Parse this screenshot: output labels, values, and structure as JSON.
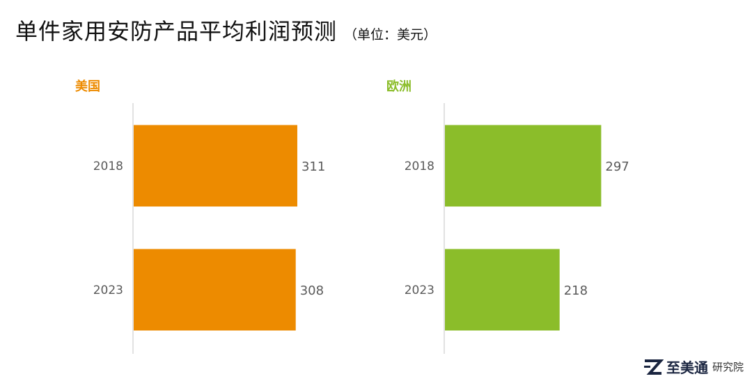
{
  "title": "单件家用安防产品平均利润预测",
  "unit": "（单位：美元）",
  "chart_data": [
    {
      "type": "bar",
      "orientation": "horizontal",
      "title": "美国",
      "color": "#ED8B00",
      "categories": [
        "2018",
        "2023"
      ],
      "values": [
        311,
        308
      ],
      "xlim": [
        0,
        450
      ],
      "grid": false
    },
    {
      "type": "bar",
      "orientation": "horizontal",
      "title": "欧洲",
      "color": "#8BBD2A",
      "categories": [
        "2018",
        "2023"
      ],
      "values": [
        297,
        218
      ],
      "xlim": [
        0,
        450
      ],
      "grid": false
    }
  ],
  "brand": {
    "name": "至美通",
    "sub": "研究院",
    "icon": "z-logo-icon",
    "icon_color": "#1a2540"
  }
}
